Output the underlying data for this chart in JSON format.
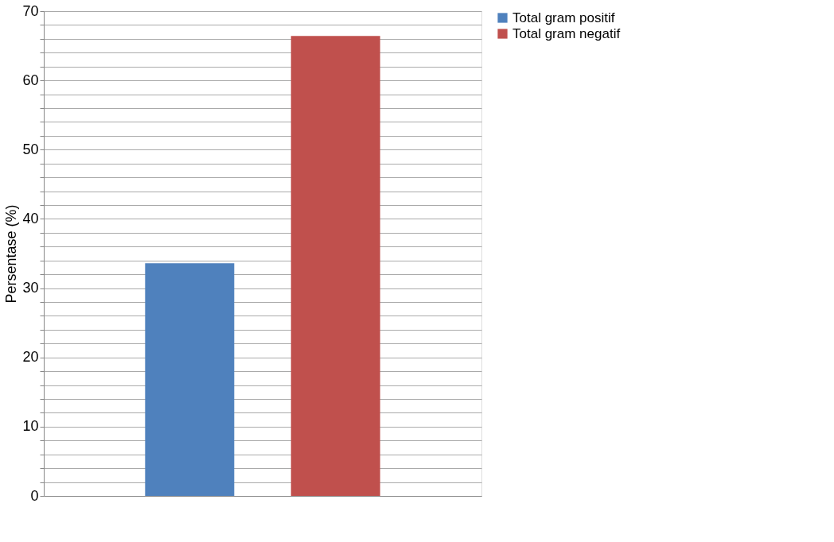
{
  "chart_data": {
    "type": "bar",
    "ylabel": "Persentase (%)",
    "categories": [
      null
    ],
    "series": [
      {
        "name": "Total gram positif",
        "color": "#4f81bd",
        "values": [
          33.6
        ]
      },
      {
        "name": "Total gram negatif",
        "color": "#c0504d",
        "values": [
          66.4
        ]
      }
    ],
    "ylim": [
      0,
      70
    ],
    "yticks": [
      0,
      {
        "value": 2,
        "label": null
      },
      {
        "value": 4,
        "label": null
      },
      {
        "value": 6,
        "label": null
      },
      {
        "value": 8,
        "label": null
      },
      10,
      {
        "value": 12,
        "label": null
      },
      {
        "value": 14,
        "label": null
      },
      {
        "value": 16,
        "label": null
      },
      {
        "value": 18,
        "label": null
      },
      20,
      {
        "value": 22,
        "label": null
      },
      {
        "value": 24,
        "label": null
      },
      {
        "value": 26,
        "label": null
      },
      {
        "value": 28,
        "label": null
      },
      30,
      {
        "value": 32,
        "label": null
      },
      {
        "value": 34,
        "label": null
      },
      {
        "value": 36,
        "label": null
      },
      {
        "value": 38,
        "label": null
      },
      40,
      {
        "value": 42,
        "label": null
      },
      {
        "value": 44,
        "label": null
      },
      {
        "value": 46,
        "label": null
      },
      {
        "value": 48,
        "label": null
      },
      50,
      {
        "value": 52,
        "label": null
      },
      {
        "value": 54,
        "label": null
      },
      {
        "value": 56,
        "label": null
      },
      {
        "value": 58,
        "label": null
      },
      60,
      {
        "value": 62,
        "label": null
      },
      {
        "value": 64,
        "label": null
      },
      {
        "value": 66,
        "label": null
      },
      {
        "value": 68,
        "label": null
      },
      70
    ],
    "grid": "y",
    "legend": "right",
    "tick_labels": "y"
  }
}
